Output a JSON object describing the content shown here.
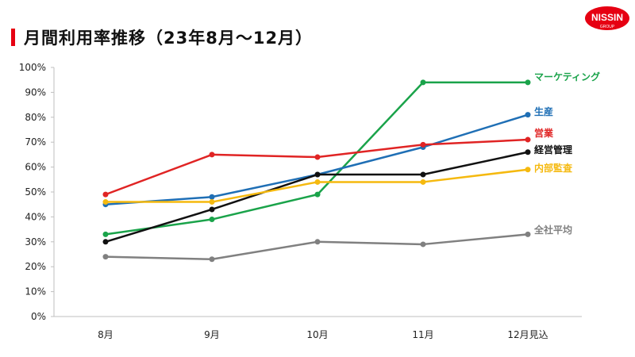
{
  "header": {
    "title": "月間利用率推移（23年8月～12月）",
    "logo_text": "NISSIN",
    "logo_sub": "GROUP",
    "accent_color": "#e60012"
  },
  "chart_data": {
    "type": "line",
    "title": "月間利用率推移（23年8月～12月）",
    "xlabel": "",
    "ylabel": "",
    "categories": [
      "8月",
      "9月",
      "10月",
      "11月",
      "12月見込"
    ],
    "ylim": [
      0,
      100
    ],
    "yticks": [
      0,
      10,
      20,
      30,
      40,
      50,
      60,
      70,
      80,
      90,
      100
    ],
    "ytick_labels": [
      "0%",
      "10%",
      "20%",
      "30%",
      "40%",
      "50%",
      "60%",
      "70%",
      "80%",
      "90%",
      "100%"
    ],
    "grid": false,
    "legend": "direct-labels-right",
    "series": [
      {
        "name": "マーケティング",
        "color": "#1aa34a",
        "values": [
          33,
          39,
          49,
          94,
          94
        ]
      },
      {
        "name": "生産",
        "color": "#1f6fb5",
        "values": [
          45,
          48,
          57,
          68,
          81
        ]
      },
      {
        "name": "営業",
        "color": "#e02424",
        "values": [
          49,
          65,
          64,
          69,
          71
        ]
      },
      {
        "name": "経営管理",
        "color": "#111111",
        "values": [
          30,
          43,
          57,
          57,
          66
        ]
      },
      {
        "name": "内部監査",
        "color": "#f5b90f",
        "values": [
          46,
          46,
          54,
          54,
          59
        ]
      },
      {
        "name": "全社平均",
        "color": "#808080",
        "values": [
          24,
          23,
          30,
          29,
          33
        ]
      }
    ]
  }
}
